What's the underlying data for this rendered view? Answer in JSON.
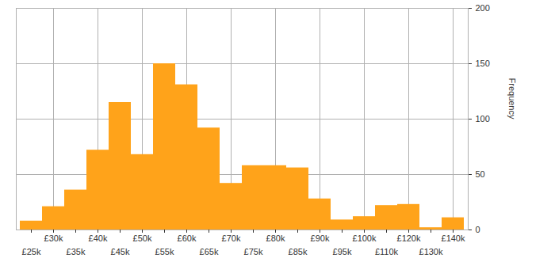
{
  "chart_data": {
    "type": "bar",
    "ylabel": "Frequency",
    "categories": [
      "£25k",
      "£30k",
      "£35k",
      "£40k",
      "£45k",
      "£50k",
      "£55k",
      "£60k",
      "£65k",
      "£70k",
      "£75k",
      "£80k",
      "£85k",
      "£90k",
      "£95k",
      "£100k",
      "£110k",
      "£120k",
      "£130k",
      "£140k"
    ],
    "values": [
      8,
      21,
      36,
      72,
      115,
      68,
      150,
      131,
      92,
      42,
      58,
      58,
      56,
      28,
      9,
      12,
      22,
      23,
      2,
      11
    ],
    "color": "#ffa31a",
    "ylim": [
      0,
      200
    ],
    "yticks": [
      0,
      50,
      100,
      150,
      200
    ],
    "grid": true
  }
}
